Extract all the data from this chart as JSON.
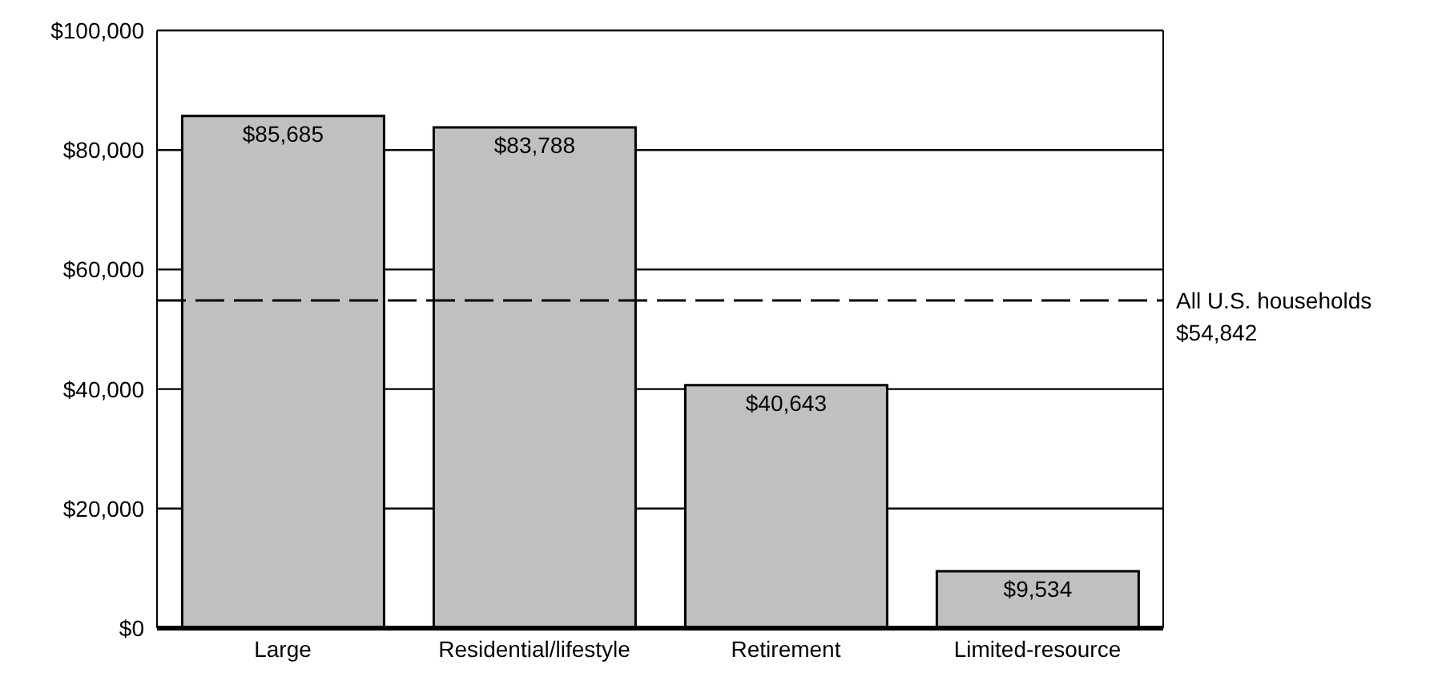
{
  "chart_data": {
    "type": "bar",
    "categories": [
      "Large",
      "Residential/lifestyle",
      "Retirement",
      "Limited-resource"
    ],
    "values": [
      85685,
      83788,
      40643,
      9534
    ],
    "value_labels": [
      "$85,685",
      "$83,788",
      "$40,643",
      "$9,534"
    ],
    "color": "#c0c0c0",
    "ylim": [
      0,
      100000
    ],
    "yticks": [
      {
        "value": 0,
        "label": "$0"
      },
      {
        "value": 20000,
        "label": "$20,000"
      },
      {
        "value": 40000,
        "label": "$40,000"
      },
      {
        "value": 60000,
        "label": "$60,000"
      },
      {
        "value": 80000,
        "label": "$80,000"
      },
      {
        "value": 100000,
        "label": "$100,000"
      }
    ],
    "grid": "y",
    "ref_lines": [
      {
        "axis": "y",
        "value": 54842,
        "label": "All U.S. households\n$54,842",
        "line_style": "dashed",
        "color": "#000000"
      }
    ]
  }
}
